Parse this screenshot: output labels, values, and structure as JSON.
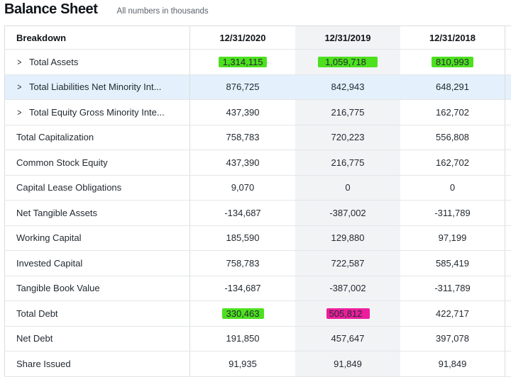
{
  "header": {
    "title": "Balance Sheet",
    "subtitle": "All numbers in thousands"
  },
  "table": {
    "columns": [
      "Breakdown",
      "12/31/2020",
      "12/31/2019",
      "12/31/2018"
    ],
    "rows": [
      {
        "label": "Total Assets",
        "expandable": true,
        "values": [
          "1,314,115",
          "1,059,718",
          "810,993"
        ],
        "highlights": [
          "green",
          "green",
          "green"
        ]
      },
      {
        "label": "Total Liabilities Net Minority Int...",
        "expandable": true,
        "selected": true,
        "values": [
          "876,725",
          "842,943",
          "648,291"
        ]
      },
      {
        "label": "Total Equity Gross Minority Inte...",
        "expandable": true,
        "values": [
          "437,390",
          "216,775",
          "162,702"
        ]
      },
      {
        "label": "Total Capitalization",
        "values": [
          "758,783",
          "720,223",
          "556,808"
        ]
      },
      {
        "label": "Common Stock Equity",
        "values": [
          "437,390",
          "216,775",
          "162,702"
        ]
      },
      {
        "label": "Capital Lease Obligations",
        "values": [
          "9,070",
          "0",
          "0"
        ]
      },
      {
        "label": "Net Tangible Assets",
        "values": [
          "-134,687",
          "-387,002",
          "-311,789"
        ]
      },
      {
        "label": "Working Capital",
        "values": [
          "185,590",
          "129,880",
          "97,199"
        ]
      },
      {
        "label": "Invested Capital",
        "values": [
          "758,783",
          "722,587",
          "585,419"
        ]
      },
      {
        "label": "Tangible Book Value",
        "values": [
          "-134,687",
          "-387,002",
          "-311,789"
        ]
      },
      {
        "label": "Total Debt",
        "values": [
          "330,463",
          "505,812",
          "422,717"
        ],
        "highlights": [
          "green",
          "pink",
          ""
        ]
      },
      {
        "label": "Net Debt",
        "values": [
          "191,850",
          "457,647",
          "397,078"
        ]
      },
      {
        "label": "Share Issued",
        "values": [
          "91,935",
          "91,849",
          "91,849"
        ]
      }
    ]
  },
  "colors": {
    "highlight_green": "#4de01f",
    "highlight_pink": "#ec1e9d",
    "selected_row": "#e4f1fc"
  }
}
